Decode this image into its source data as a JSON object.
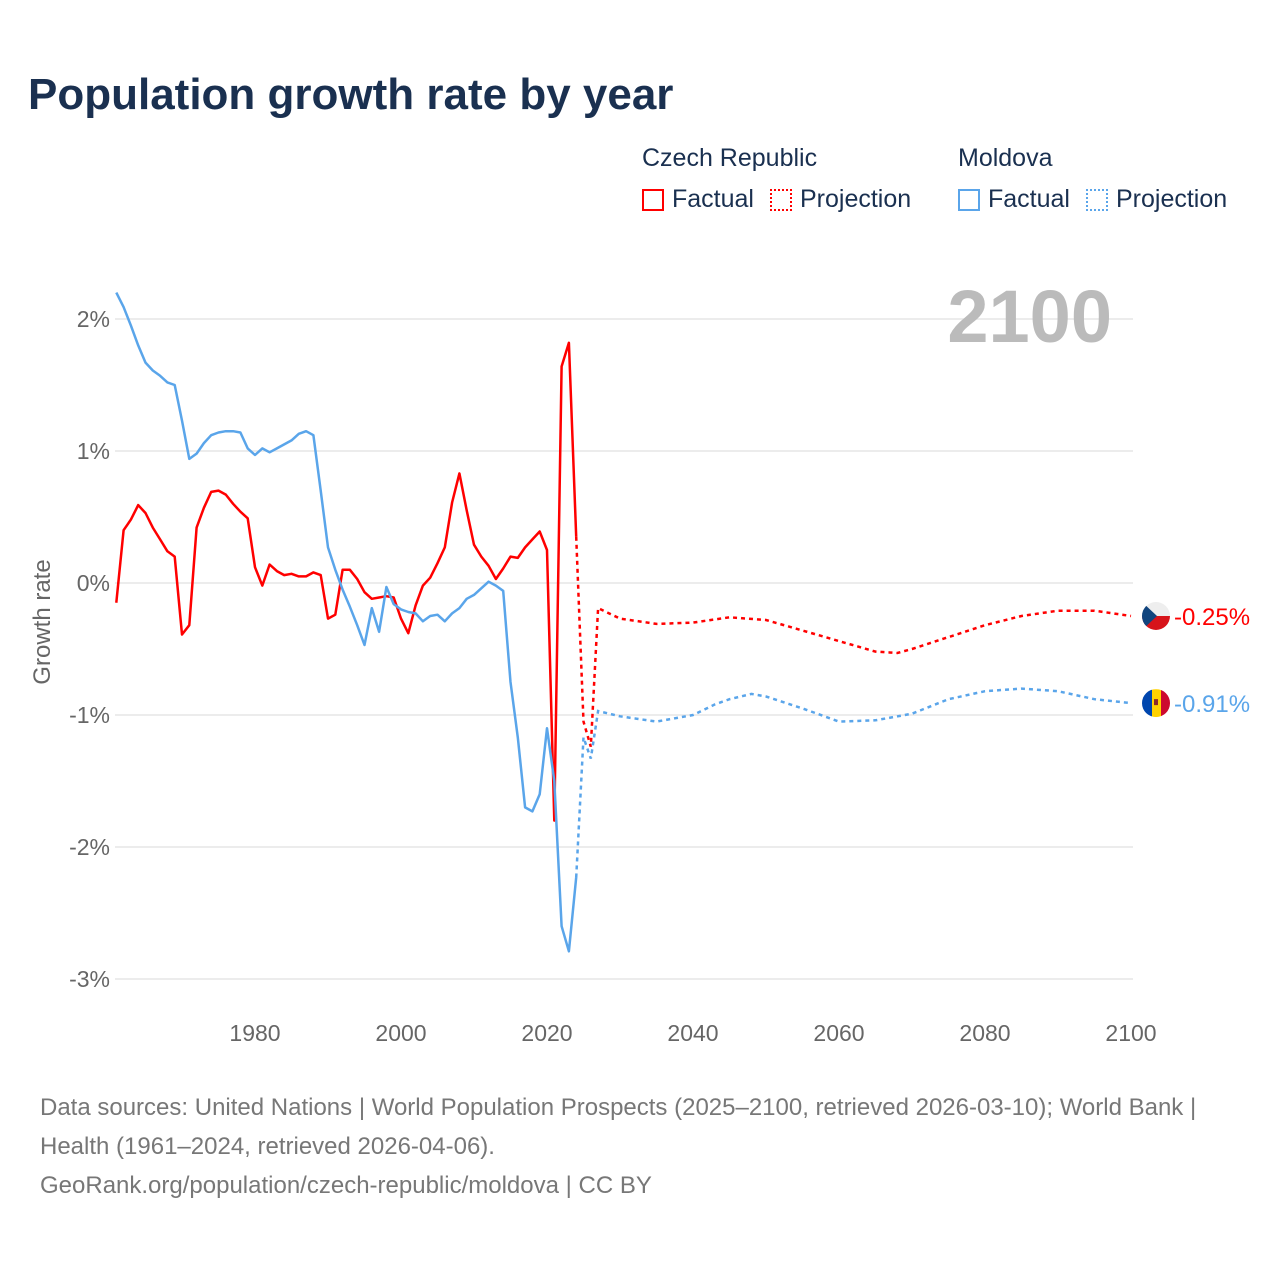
{
  "title": "Population growth rate by year",
  "legend": [
    {
      "country": "Czech Republic",
      "factual": "Factual",
      "projection": "Projection",
      "color": "#ff0000"
    },
    {
      "country": "Moldova",
      "factual": "Factual",
      "projection": "Projection",
      "color": "#5aa5ea"
    }
  ],
  "year_label": "2100",
  "footer": {
    "line1": "Data sources: United Nations | World Population Prospects (2025–2100, retrieved 2026-03-10); World Bank | Health (1961–2024, retrieved 2026-04-06).",
    "line2": "GeoRank.org/population/czech-republic/moldova | CC BY"
  },
  "chart_data": {
    "type": "line",
    "title": "Population growth rate by year",
    "xlabel": "",
    "ylabel": "Growth rate",
    "xlim": [
      1961,
      2100
    ],
    "ylim": [
      -3.3,
      2.3
    ],
    "xticks": [
      1980,
      2000,
      2020,
      2040,
      2060,
      2080,
      2100
    ],
    "yticks": [
      {
        "v": 2,
        "label": "2%"
      },
      {
        "v": 1,
        "label": "1%"
      },
      {
        "v": 0,
        "label": "0%"
      },
      {
        "v": -1,
        "label": "-1%"
      },
      {
        "v": -2,
        "label": "-2%"
      },
      {
        "v": -3,
        "label": "-3%"
      }
    ],
    "grid": true,
    "series": [
      {
        "name": "Czech Republic",
        "color": "#ff0000",
        "end_label": "-0.25%",
        "factual_start": 1961,
        "factual": [
          -0.15,
          0.4,
          0.48,
          0.59,
          0.53,
          0.42,
          0.33,
          0.24,
          0.2,
          -0.39,
          -0.32,
          0.42,
          0.57,
          0.69,
          0.7,
          0.67,
          0.6,
          0.54,
          0.49,
          0.12,
          -0.02,
          0.14,
          0.09,
          0.06,
          0.07,
          0.05,
          0.05,
          0.08,
          0.06,
          -0.27,
          -0.24,
          0.1,
          0.1,
          0.03,
          -0.07,
          -0.12,
          -0.11,
          -0.1,
          -0.11,
          -0.27,
          -0.38,
          -0.17,
          -0.02,
          0.04,
          0.15,
          0.27,
          0.61,
          0.83,
          0.55,
          0.29,
          0.2,
          0.13,
          0.03,
          0.11,
          0.2,
          0.19,
          0.27,
          0.33,
          0.39,
          0.25,
          -1.8,
          1.64,
          1.82,
          0.35
        ],
        "projection": [
          [
            2024,
            0.35
          ],
          [
            2025,
            -1.05
          ],
          [
            2026,
            -1.24
          ],
          [
            2027,
            -0.19
          ],
          [
            2030,
            -0.27
          ],
          [
            2035,
            -0.31
          ],
          [
            2040,
            -0.3
          ],
          [
            2045,
            -0.26
          ],
          [
            2050,
            -0.28
          ],
          [
            2055,
            -0.36
          ],
          [
            2060,
            -0.44
          ],
          [
            2065,
            -0.52
          ],
          [
            2068,
            -0.53
          ],
          [
            2070,
            -0.5
          ],
          [
            2075,
            -0.41
          ],
          [
            2080,
            -0.32
          ],
          [
            2085,
            -0.25
          ],
          [
            2090,
            -0.21
          ],
          [
            2095,
            -0.21
          ],
          [
            2100,
            -0.25
          ]
        ]
      },
      {
        "name": "Moldova",
        "color": "#5aa5ea",
        "end_label": "-0.91%",
        "factual_start": 1961,
        "factual": [
          2.2,
          2.09,
          1.95,
          1.8,
          1.67,
          1.61,
          1.57,
          1.52,
          1.5,
          1.23,
          0.94,
          0.98,
          1.06,
          1.12,
          1.14,
          1.15,
          1.15,
          1.14,
          1.02,
          0.97,
          1.02,
          0.99,
          1.02,
          1.05,
          1.08,
          1.13,
          1.15,
          1.12,
          0.7,
          0.27,
          0.1,
          -0.05,
          -0.18,
          -0.32,
          -0.47,
          -0.19,
          -0.37,
          -0.03,
          -0.16,
          -0.2,
          -0.22,
          -0.23,
          -0.29,
          -0.25,
          -0.24,
          -0.29,
          -0.23,
          -0.19,
          -0.12,
          -0.09,
          -0.04,
          0.01,
          -0.02,
          -0.06,
          -0.75,
          -1.17,
          -1.7,
          -1.73,
          -1.6,
          -1.1,
          -1.5,
          -2.6,
          -2.79,
          -2.23
        ],
        "projection": [
          [
            2024,
            -2.23
          ],
          [
            2025,
            -1.17
          ],
          [
            2026,
            -1.33
          ],
          [
            2027,
            -0.97
          ],
          [
            2030,
            -1.01
          ],
          [
            2035,
            -1.05
          ],
          [
            2040,
            -1.0
          ],
          [
            2043,
            -0.92
          ],
          [
            2045,
            -0.88
          ],
          [
            2048,
            -0.84
          ],
          [
            2050,
            -0.86
          ],
          [
            2055,
            -0.95
          ],
          [
            2060,
            -1.05
          ],
          [
            2065,
            -1.04
          ],
          [
            2070,
            -0.99
          ],
          [
            2075,
            -0.88
          ],
          [
            2080,
            -0.82
          ],
          [
            2085,
            -0.8
          ],
          [
            2090,
            -0.82
          ],
          [
            2095,
            -0.88
          ],
          [
            2100,
            -0.91
          ]
        ]
      }
    ]
  }
}
